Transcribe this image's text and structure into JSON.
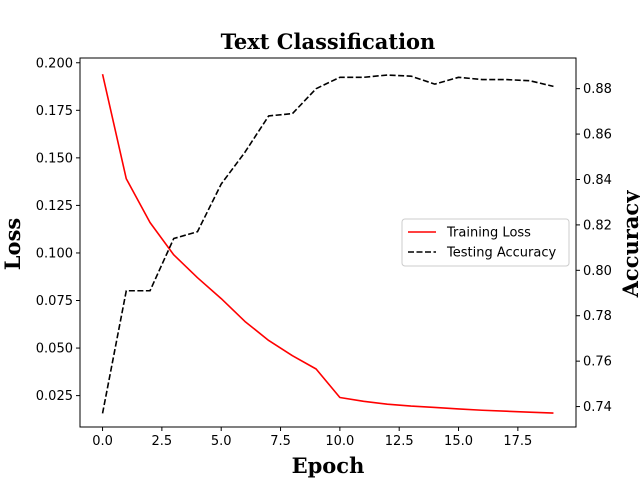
{
  "chart_data": {
    "type": "line",
    "title": "Text Classification",
    "xlabel": "Epoch",
    "ylabel_left": "Loss",
    "ylabel_right": "Accuracy",
    "xlim": [
      -0.95,
      19.95
    ],
    "ylim_left": [
      0.0085,
      0.2025
    ],
    "ylim_right": [
      0.731,
      0.8935
    ],
    "x_ticks": [
      0.0,
      2.5,
      5.0,
      7.5,
      10.0,
      12.5,
      15.0,
      17.5
    ],
    "x_tick_labels": [
      "0.0",
      "2.5",
      "5.0",
      "7.5",
      "10.0",
      "12.5",
      "15.0",
      "17.5"
    ],
    "y_left_ticks": [
      0.025,
      0.05,
      0.075,
      0.1,
      0.125,
      0.15,
      0.175,
      0.2
    ],
    "y_left_tick_labels": [
      "0.025",
      "0.050",
      "0.075",
      "0.100",
      "0.125",
      "0.150",
      "0.175",
      "0.200"
    ],
    "y_right_ticks": [
      0.74,
      0.76,
      0.78,
      0.8,
      0.82,
      0.84,
      0.86,
      0.88
    ],
    "y_right_tick_labels": [
      "0.74",
      "0.76",
      "0.78",
      "0.80",
      "0.82",
      "0.84",
      "0.86",
      "0.88"
    ],
    "x": [
      0,
      1,
      2,
      3,
      4,
      5,
      6,
      7,
      8,
      9,
      10,
      11,
      12,
      13,
      14,
      15,
      16,
      17,
      18,
      19
    ],
    "series": [
      {
        "name": "Training Loss",
        "axis": "left",
        "color": "#ff0000",
        "style": "solid",
        "values": [
          0.194,
          0.139,
          0.116,
          0.099,
          0.087,
          0.076,
          0.064,
          0.054,
          0.046,
          0.039,
          0.024,
          0.022,
          0.0205,
          0.0195,
          0.0188,
          0.018,
          0.0173,
          0.0168,
          0.0163,
          0.0158
        ]
      },
      {
        "name": "Testing Accuracy",
        "axis": "right",
        "color": "#000000",
        "style": "dashed",
        "values": [
          0.737,
          0.791,
          0.791,
          0.814,
          0.817,
          0.838,
          0.852,
          0.868,
          0.869,
          0.88,
          0.885,
          0.885,
          0.886,
          0.8855,
          0.882,
          0.885,
          0.884,
          0.884,
          0.8835,
          0.881
        ]
      }
    ],
    "legend_position": "center-right",
    "grid": false
  }
}
